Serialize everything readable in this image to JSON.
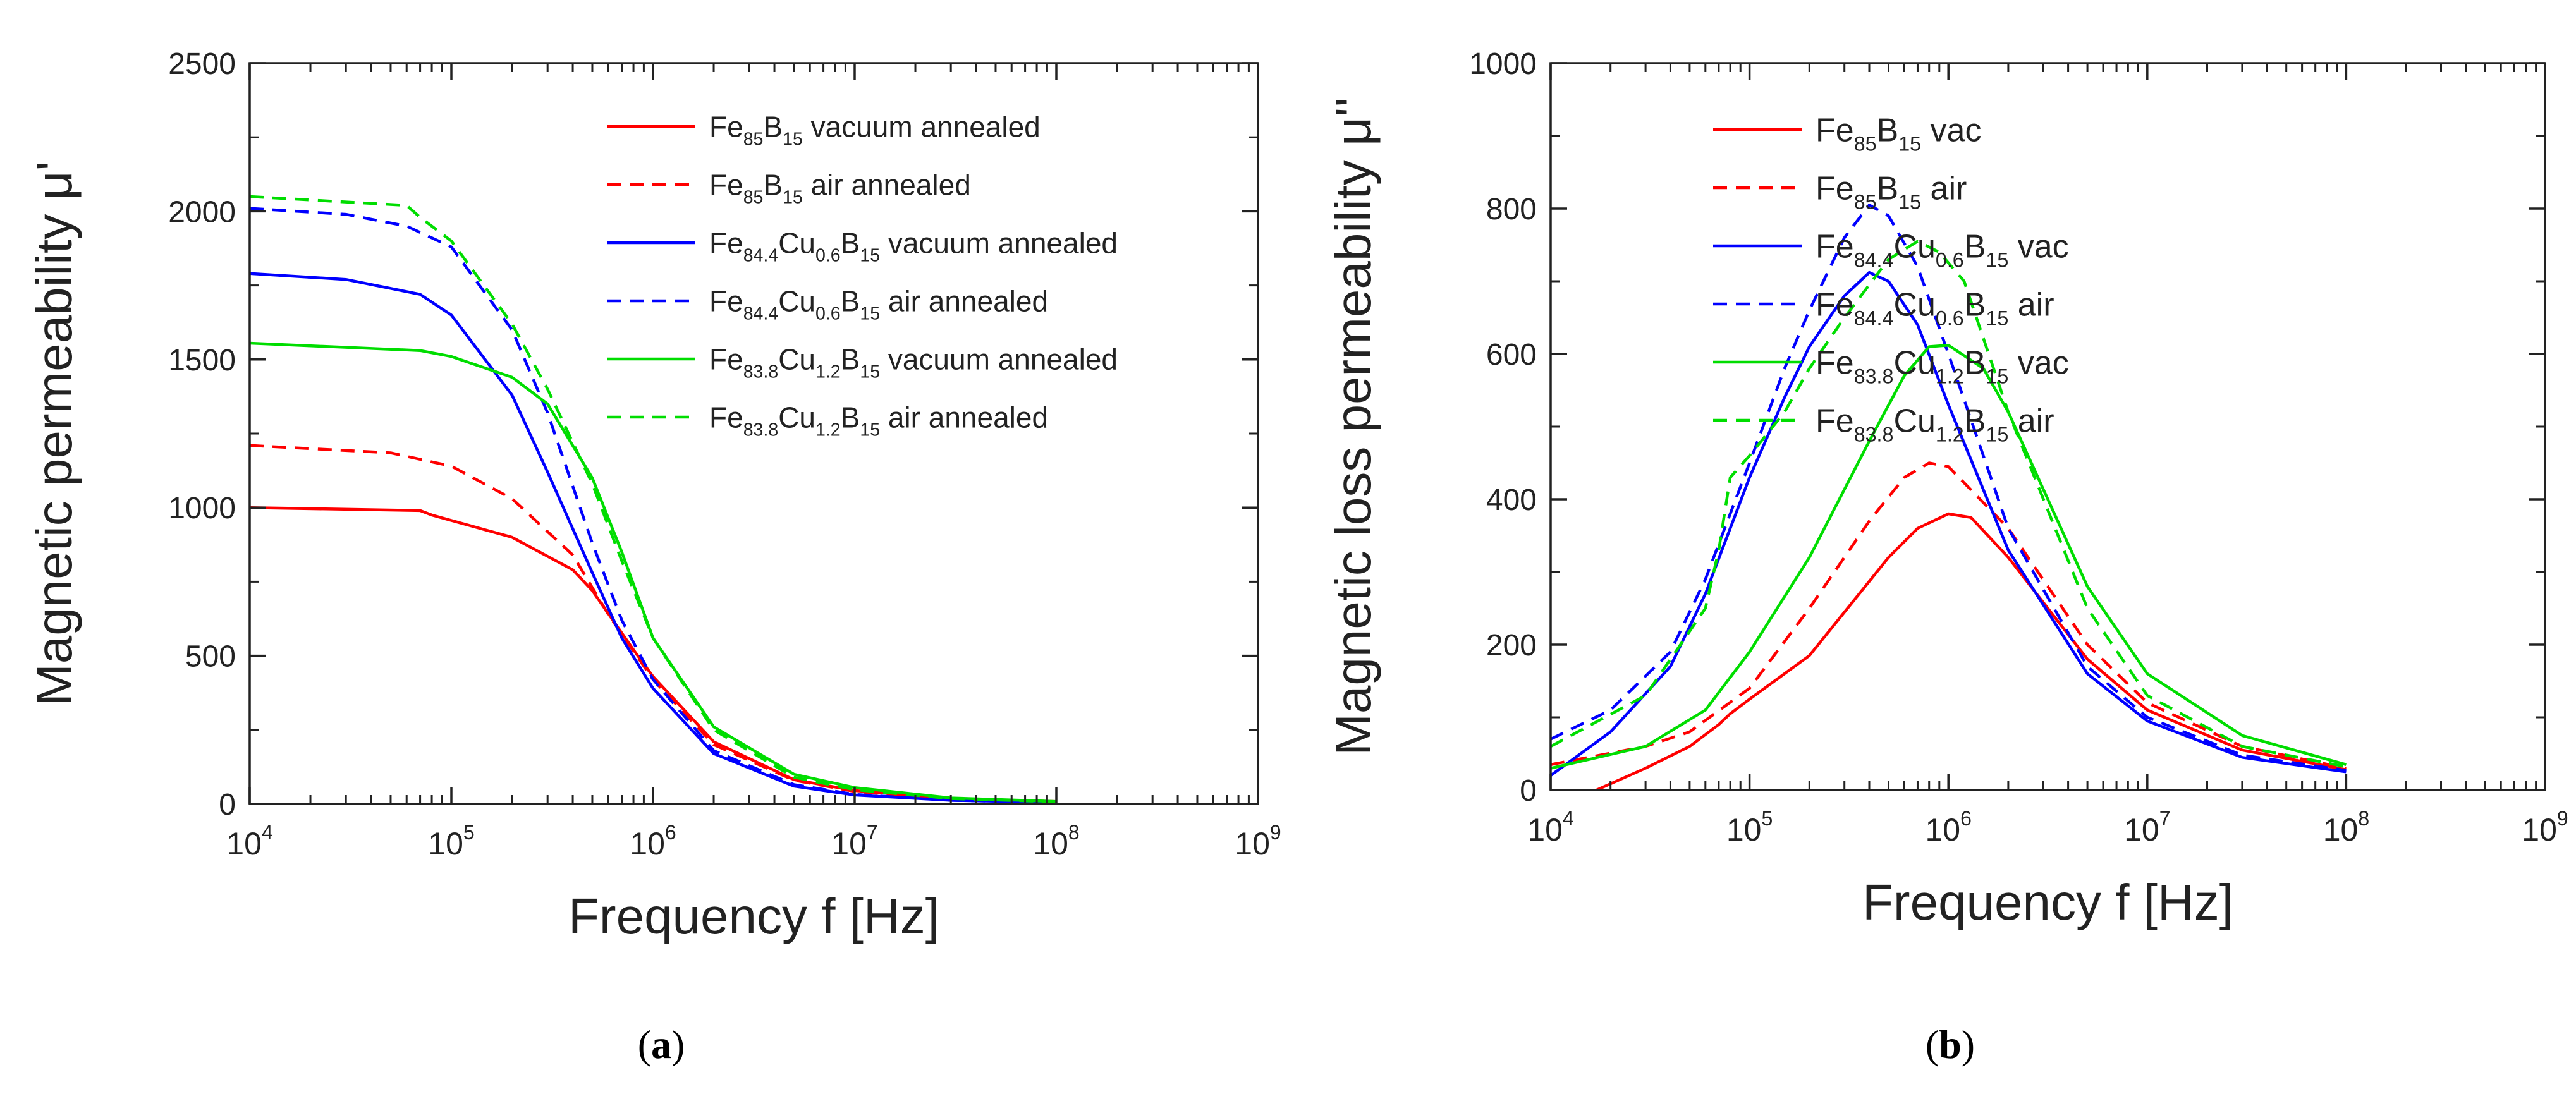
{
  "figure": {
    "panels": [
      {
        "caption_open": "(",
        "caption_letter": "a",
        "caption_close": ")"
      },
      {
        "caption_open": "(",
        "caption_letter": "b",
        "caption_close": ")"
      }
    ]
  },
  "chart_data": [
    {
      "type": "line",
      "xscale": "log",
      "xlabel": "Frequency f [Hz]",
      "ylabel": "Magnetic permeability μ'",
      "xlim": [
        10000,
        1000000000
      ],
      "ylim": [
        0,
        2500
      ],
      "xticks": [
        {
          "value": 10000,
          "base": "10",
          "exp": "4"
        },
        {
          "value": 100000,
          "base": "10",
          "exp": "5"
        },
        {
          "value": 1000000,
          "base": "10",
          "exp": "6"
        },
        {
          "value": 10000000,
          "base": "10",
          "exp": "7"
        },
        {
          "value": 100000000,
          "base": "10",
          "exp": "8"
        },
        {
          "value": 1000000000,
          "base": "10",
          "exp": "9"
        }
      ],
      "yticks": [
        0,
        500,
        1000,
        1500,
        2000,
        2500
      ],
      "legend_position": "top-right",
      "series": [
        {
          "name": "Fe85B15 vacuum annealed",
          "label_parts": [
            [
              "Fe",
              ""
            ],
            [
              "85",
              "sub"
            ],
            [
              "B",
              ""
            ],
            [
              "15",
              "sub"
            ],
            [
              " vacuum annealed",
              ""
            ]
          ],
          "color": "#ff0000",
          "dash": "solid",
          "x": [
            10000,
            70000,
            80000,
            200000,
            400000,
            500000,
            800000,
            1000000,
            2000000,
            5000000,
            10000000,
            30000000,
            100000000
          ],
          "y": [
            1000,
            990,
            975,
            900,
            790,
            720,
            520,
            430,
            210,
            82,
            45,
            18,
            8
          ]
        },
        {
          "name": "Fe85B15 air annealed",
          "label_parts": [
            [
              "Fe",
              ""
            ],
            [
              "85",
              "sub"
            ],
            [
              "B",
              ""
            ],
            [
              "15",
              "sub"
            ],
            [
              " air annealed",
              ""
            ]
          ],
          "color": "#ff0000",
          "dash": "dashed",
          "x": [
            10000,
            50000,
            100000,
            200000,
            400000,
            600000,
            1000000,
            2000000,
            5000000,
            10000000,
            30000000,
            100000000
          ],
          "y": [
            1210,
            1185,
            1140,
            1030,
            840,
            640,
            420,
            200,
            80,
            42,
            16,
            7
          ]
        },
        {
          "name": "Fe84.4Cu0.6B15 vacuum annealed",
          "label_parts": [
            [
              "Fe",
              ""
            ],
            [
              "84.4",
              "sub"
            ],
            [
              "Cu",
              ""
            ],
            [
              "0.6",
              "sub"
            ],
            [
              "B",
              ""
            ],
            [
              "15",
              "sub"
            ],
            [
              " vacuum annealed",
              ""
            ]
          ],
          "color": "#0000ff",
          "dash": "solid",
          "x": [
            10000,
            30000,
            70000,
            100000,
            200000,
            300000,
            500000,
            700000,
            1000000,
            2000000,
            5000000,
            10000000,
            30000000,
            100000000
          ],
          "y": [
            1790,
            1770,
            1720,
            1650,
            1380,
            1120,
            780,
            560,
            390,
            170,
            60,
            30,
            12,
            5
          ]
        },
        {
          "name": "Fe84.4Cu0.6B15 air annealed",
          "label_parts": [
            [
              "Fe",
              ""
            ],
            [
              "84.4",
              "sub"
            ],
            [
              "Cu",
              ""
            ],
            [
              "0.6",
              "sub"
            ],
            [
              "B",
              ""
            ],
            [
              "15",
              "sub"
            ],
            [
              " air annealed",
              ""
            ]
          ],
          "color": "#0000ff",
          "dash": "dashed",
          "x": [
            10000,
            30000,
            60000,
            100000,
            200000,
            300000,
            500000,
            700000,
            1000000,
            2000000,
            5000000,
            10000000,
            30000000,
            100000000
          ],
          "y": [
            2010,
            1990,
            1950,
            1880,
            1600,
            1320,
            880,
            620,
            420,
            180,
            65,
            32,
            12,
            5
          ]
        },
        {
          "name": "Fe83.8Cu1.2B15 vacuum annealed",
          "label_parts": [
            [
              "Fe",
              ""
            ],
            [
              "83.8",
              "sub"
            ],
            [
              "Cu",
              ""
            ],
            [
              "1.2",
              "sub"
            ],
            [
              "B",
              ""
            ],
            [
              "15",
              "sub"
            ],
            [
              " vacuum annealed",
              ""
            ]
          ],
          "color": "#00dd00",
          "dash": "solid",
          "x": [
            10000,
            70000,
            100000,
            200000,
            300000,
            500000,
            700000,
            1000000,
            2000000,
            5000000,
            10000000,
            30000000,
            100000000
          ],
          "y": [
            1555,
            1530,
            1510,
            1440,
            1350,
            1100,
            850,
            560,
            260,
            100,
            55,
            20,
            8
          ]
        },
        {
          "name": "Fe83.8Cu1.2B15 air annealed",
          "label_parts": [
            [
              "Fe",
              ""
            ],
            [
              "83.8",
              "sub"
            ],
            [
              "Cu",
              ""
            ],
            [
              "1.2",
              "sub"
            ],
            [
              "B",
              ""
            ],
            [
              "15",
              "sub"
            ],
            [
              " air annealed",
              ""
            ]
          ],
          "color": "#00dd00",
          "dash": "dashed",
          "x": [
            10000,
            60000,
            70000,
            100000,
            200000,
            300000,
            500000,
            700000,
            1000000,
            2000000,
            5000000,
            10000000,
            30000000,
            100000000
          ],
          "y": [
            2050,
            2020,
            1980,
            1900,
            1620,
            1400,
            1080,
            820,
            560,
            250,
            90,
            48,
            18,
            7
          ]
        }
      ]
    },
    {
      "type": "line",
      "xscale": "log",
      "xlabel": "Frequency f [Hz]",
      "ylabel": "Magnetic loss permeability μ''",
      "xlim": [
        10000,
        1000000000
      ],
      "ylim": [
        0,
        1000
      ],
      "xticks": [
        {
          "value": 10000,
          "base": "10",
          "exp": "4"
        },
        {
          "value": 100000,
          "base": "10",
          "exp": "5"
        },
        {
          "value": 1000000,
          "base": "10",
          "exp": "6"
        },
        {
          "value": 10000000,
          "base": "10",
          "exp": "7"
        },
        {
          "value": 100000000,
          "base": "10",
          "exp": "8"
        },
        {
          "value": 1000000000,
          "base": "10",
          "exp": "9"
        }
      ],
      "yticks": [
        0,
        200,
        400,
        600,
        800,
        1000
      ],
      "legend_position": "top-right",
      "series": [
        {
          "name": "Fe85B15 vac",
          "label_parts": [
            [
              "Fe",
              ""
            ],
            [
              "85",
              "sub"
            ],
            [
              "B",
              ""
            ],
            [
              "15",
              "sub"
            ],
            [
              " vac",
              ""
            ]
          ],
          "color": "#ff0000",
          "dash": "solid",
          "x": [
            17000,
            30000,
            50000,
            70000,
            80000,
            100000,
            200000,
            500000,
            700000,
            1000000,
            1300000,
            2000000,
            5000000,
            10000000,
            30000000,
            100000000
          ],
          "y": [
            0,
            30,
            60,
            90,
            105,
            125,
            185,
            320,
            360,
            380,
            375,
            320,
            180,
            110,
            55,
            28
          ]
        },
        {
          "name": "Fe85B15 air",
          "label_parts": [
            [
              "Fe",
              ""
            ],
            [
              "85",
              "sub"
            ],
            [
              "B",
              ""
            ],
            [
              "15",
              "sub"
            ],
            [
              " air",
              ""
            ]
          ],
          "color": "#ff0000",
          "dash": "dashed",
          "x": [
            10000,
            30000,
            50000,
            100000,
            200000,
            400000,
            600000,
            800000,
            1000000,
            2000000,
            5000000,
            10000000,
            30000000,
            100000000
          ],
          "y": [
            35,
            60,
            80,
            140,
            250,
            370,
            430,
            450,
            445,
            360,
            200,
            120,
            60,
            30
          ]
        },
        {
          "name": "Fe84.4Cu0.6B15 vac",
          "label_parts": [
            [
              "Fe",
              ""
            ],
            [
              "84.4",
              "sub"
            ],
            [
              "Cu",
              ""
            ],
            [
              "0.6",
              "sub"
            ],
            [
              "B",
              ""
            ],
            [
              "15",
              "sub"
            ],
            [
              " vac",
              ""
            ]
          ],
          "color": "#0000ff",
          "dash": "solid",
          "x": [
            10000,
            20000,
            40000,
            60000,
            100000,
            150000,
            200000,
            300000,
            400000,
            500000,
            700000,
            1000000,
            2000000,
            5000000,
            10000000,
            30000000,
            100000000
          ],
          "y": [
            20,
            80,
            170,
            270,
            430,
            540,
            610,
            680,
            712,
            700,
            640,
            530,
            330,
            160,
            95,
            45,
            25
          ]
        },
        {
          "name": "Fe84.4Cu0.6B15 air",
          "label_parts": [
            [
              "Fe",
              ""
            ],
            [
              "84.4",
              "sub"
            ],
            [
              "Cu",
              ""
            ],
            [
              "0.6",
              "sub"
            ],
            [
              "B",
              ""
            ],
            [
              "15",
              "sub"
            ],
            [
              " air",
              ""
            ]
          ],
          "color": "#0000ff",
          "dash": "dashed",
          "x": [
            10000,
            20000,
            40000,
            60000,
            100000,
            150000,
            200000,
            300000,
            400000,
            500000,
            700000,
            1000000,
            2000000,
            5000000,
            10000000,
            30000000,
            100000000
          ],
          "y": [
            70,
            110,
            190,
            290,
            450,
            580,
            660,
            760,
            805,
            790,
            720,
            600,
            360,
            170,
            100,
            48,
            27
          ]
        },
        {
          "name": "Fe83.8Cu1.2B15 vac",
          "label_parts": [
            [
              "Fe",
              ""
            ],
            [
              "83.8",
              "sub"
            ],
            [
              "Cu",
              ""
            ],
            [
              "1.2",
              "sub"
            ],
            [
              "B",
              ""
            ],
            [
              "15",
              "sub"
            ],
            [
              " vac",
              ""
            ]
          ],
          "color": "#00dd00",
          "dash": "solid",
          "x": [
            10000,
            30000,
            60000,
            100000,
            200000,
            400000,
            600000,
            800000,
            1000000,
            1500000,
            2000000,
            5000000,
            10000000,
            30000000,
            100000000
          ],
          "y": [
            30,
            60,
            110,
            190,
            320,
            480,
            570,
            610,
            612,
            580,
            520,
            280,
            160,
            75,
            35
          ]
        },
        {
          "name": "Fe83.8Cu1.2B15 air",
          "label_parts": [
            [
              "Fe",
              ""
            ],
            [
              "83.8",
              "sub"
            ],
            [
              "Cu",
              ""
            ],
            [
              "1.2",
              "sub"
            ],
            [
              "B",
              ""
            ],
            [
              "15",
              "sub"
            ],
            [
              " air",
              ""
            ]
          ],
          "color": "#00dd00",
          "dash": "dashed",
          "x": [
            10000,
            30000,
            60000,
            70000,
            80000,
            100000,
            150000,
            200000,
            300000,
            500000,
            700000,
            900000,
            1200000,
            2000000,
            5000000,
            10000000,
            30000000,
            100000000
          ],
          "y": [
            60,
            130,
            250,
            330,
            430,
            460,
            520,
            580,
            650,
            730,
            755,
            740,
            700,
            520,
            250,
            130,
            60,
            32
          ]
        }
      ]
    }
  ]
}
